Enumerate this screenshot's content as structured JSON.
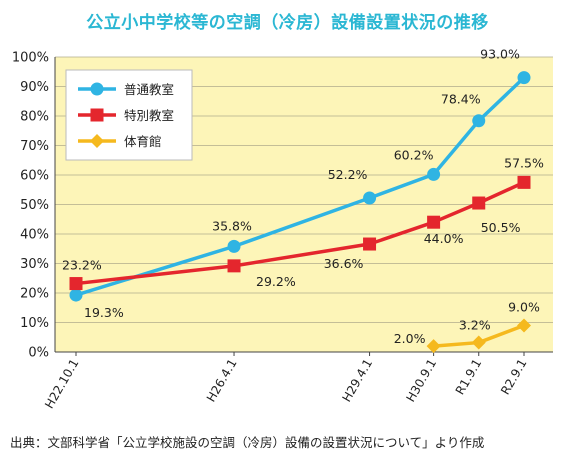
{
  "chart_data": {
    "type": "line",
    "title": "公立小中学校等の空調（冷房）設備設置状況の推移",
    "source_note": "出典：文部科学省「公立学校施設の空調（冷房）設備の設置状況について」より作成",
    "categories": [
      "H22.10.1",
      "H26.4.1",
      "H29.4.1",
      "H30.9.1",
      "R1.9.1",
      "R2.9.1"
    ],
    "x_dates": [
      "2010-10-01",
      "2014-04-01",
      "2017-04-01",
      "2018-09-01",
      "2019-09-01",
      "2020-09-01"
    ],
    "ylim": [
      0,
      100
    ],
    "y_ticks": [
      "0%",
      "10%",
      "20%",
      "30%",
      "40%",
      "50%",
      "60%",
      "70%",
      "80%",
      "90%",
      "100%"
    ],
    "legend_position": "top-left",
    "grid": "horizontal",
    "plot_background": "#fdf5b8",
    "series": [
      {
        "name": "普通教室",
        "color": "#2fb4e3",
        "marker": "circle",
        "values": [
          19.3,
          35.8,
          52.2,
          60.2,
          78.4,
          93.0
        ],
        "labels": [
          "19.3%",
          "35.8%",
          "52.2%",
          "60.2%",
          "78.4%",
          "93.0%"
        ]
      },
      {
        "name": "特別教室",
        "color": "#e4262d",
        "marker": "square",
        "values": [
          23.2,
          29.2,
          36.6,
          44.0,
          50.5,
          57.5
        ],
        "labels": [
          "23.2%",
          "29.2%",
          "36.6%",
          "44.0%",
          "50.5%",
          "57.5%"
        ]
      },
      {
        "name": "体育館",
        "color": "#f5b91e",
        "marker": "diamond",
        "values": [
          null,
          null,
          null,
          2.0,
          3.2,
          9.0
        ],
        "labels": [
          "",
          "",
          "",
          "2.0%",
          "3.2%",
          "9.0%"
        ]
      }
    ]
  }
}
